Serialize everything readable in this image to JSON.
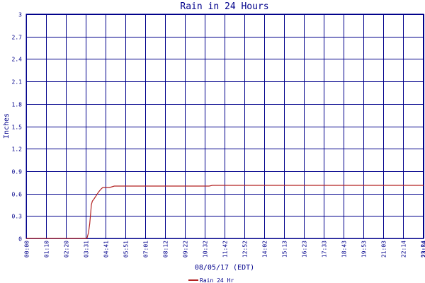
{
  "chart_data": {
    "type": "line",
    "title": "Rain in 24 Hours",
    "xlabel": "08/05/17 (EDT)",
    "ylabel": "Inches",
    "ylim": [
      0,
      3
    ],
    "yticks": [
      0,
      0.3,
      0.6,
      0.9,
      1.2,
      1.5,
      1.8,
      2.1,
      2.4,
      2.7,
      3
    ],
    "ytick_labels": [
      "0",
      "0.3",
      "0.6",
      "0.9",
      "1.2",
      "1.5",
      "1.8",
      "2.1",
      "2.4",
      "2.7",
      "3"
    ],
    "xlim_hours": [
      0,
      23.9
    ],
    "xtick_labels": [
      "00:00",
      "01:10",
      "02:20",
      "03:31",
      "04:41",
      "05:51",
      "07:01",
      "08:12",
      "09:22",
      "10:32",
      "11:42",
      "12:52",
      "14:02",
      "15:13",
      "16:23",
      "17:33",
      "18:43",
      "19:53",
      "21:03",
      "22:14",
      "23:24",
      "23:54"
    ],
    "grid": true,
    "legend_position": "bottom",
    "colors": {
      "grid": "#00008b",
      "series": "#b22222",
      "text": "#00008b",
      "background": "#ffffff"
    },
    "series": [
      {
        "name": "Rain 24 Hr",
        "x": [
          0,
          1,
          2,
          3,
          3.65,
          3.75,
          3.82,
          3.88,
          3.92,
          3.98,
          4.05,
          4.2,
          4.35,
          4.5,
          4.6,
          4.75,
          5,
          5.3,
          5.6,
          6,
          8,
          10,
          11,
          11.2,
          11.5,
          14,
          16,
          18,
          20,
          22,
          23.9
        ],
        "y": [
          0,
          0,
          0,
          0,
          0,
          0.08,
          0.2,
          0.35,
          0.45,
          0.5,
          0.52,
          0.57,
          0.62,
          0.66,
          0.68,
          0.68,
          0.68,
          0.7,
          0.7,
          0.7,
          0.7,
          0.7,
          0.7,
          0.71,
          0.71,
          0.71,
          0.71,
          0.71,
          0.71,
          0.71,
          0.71
        ]
      }
    ]
  }
}
